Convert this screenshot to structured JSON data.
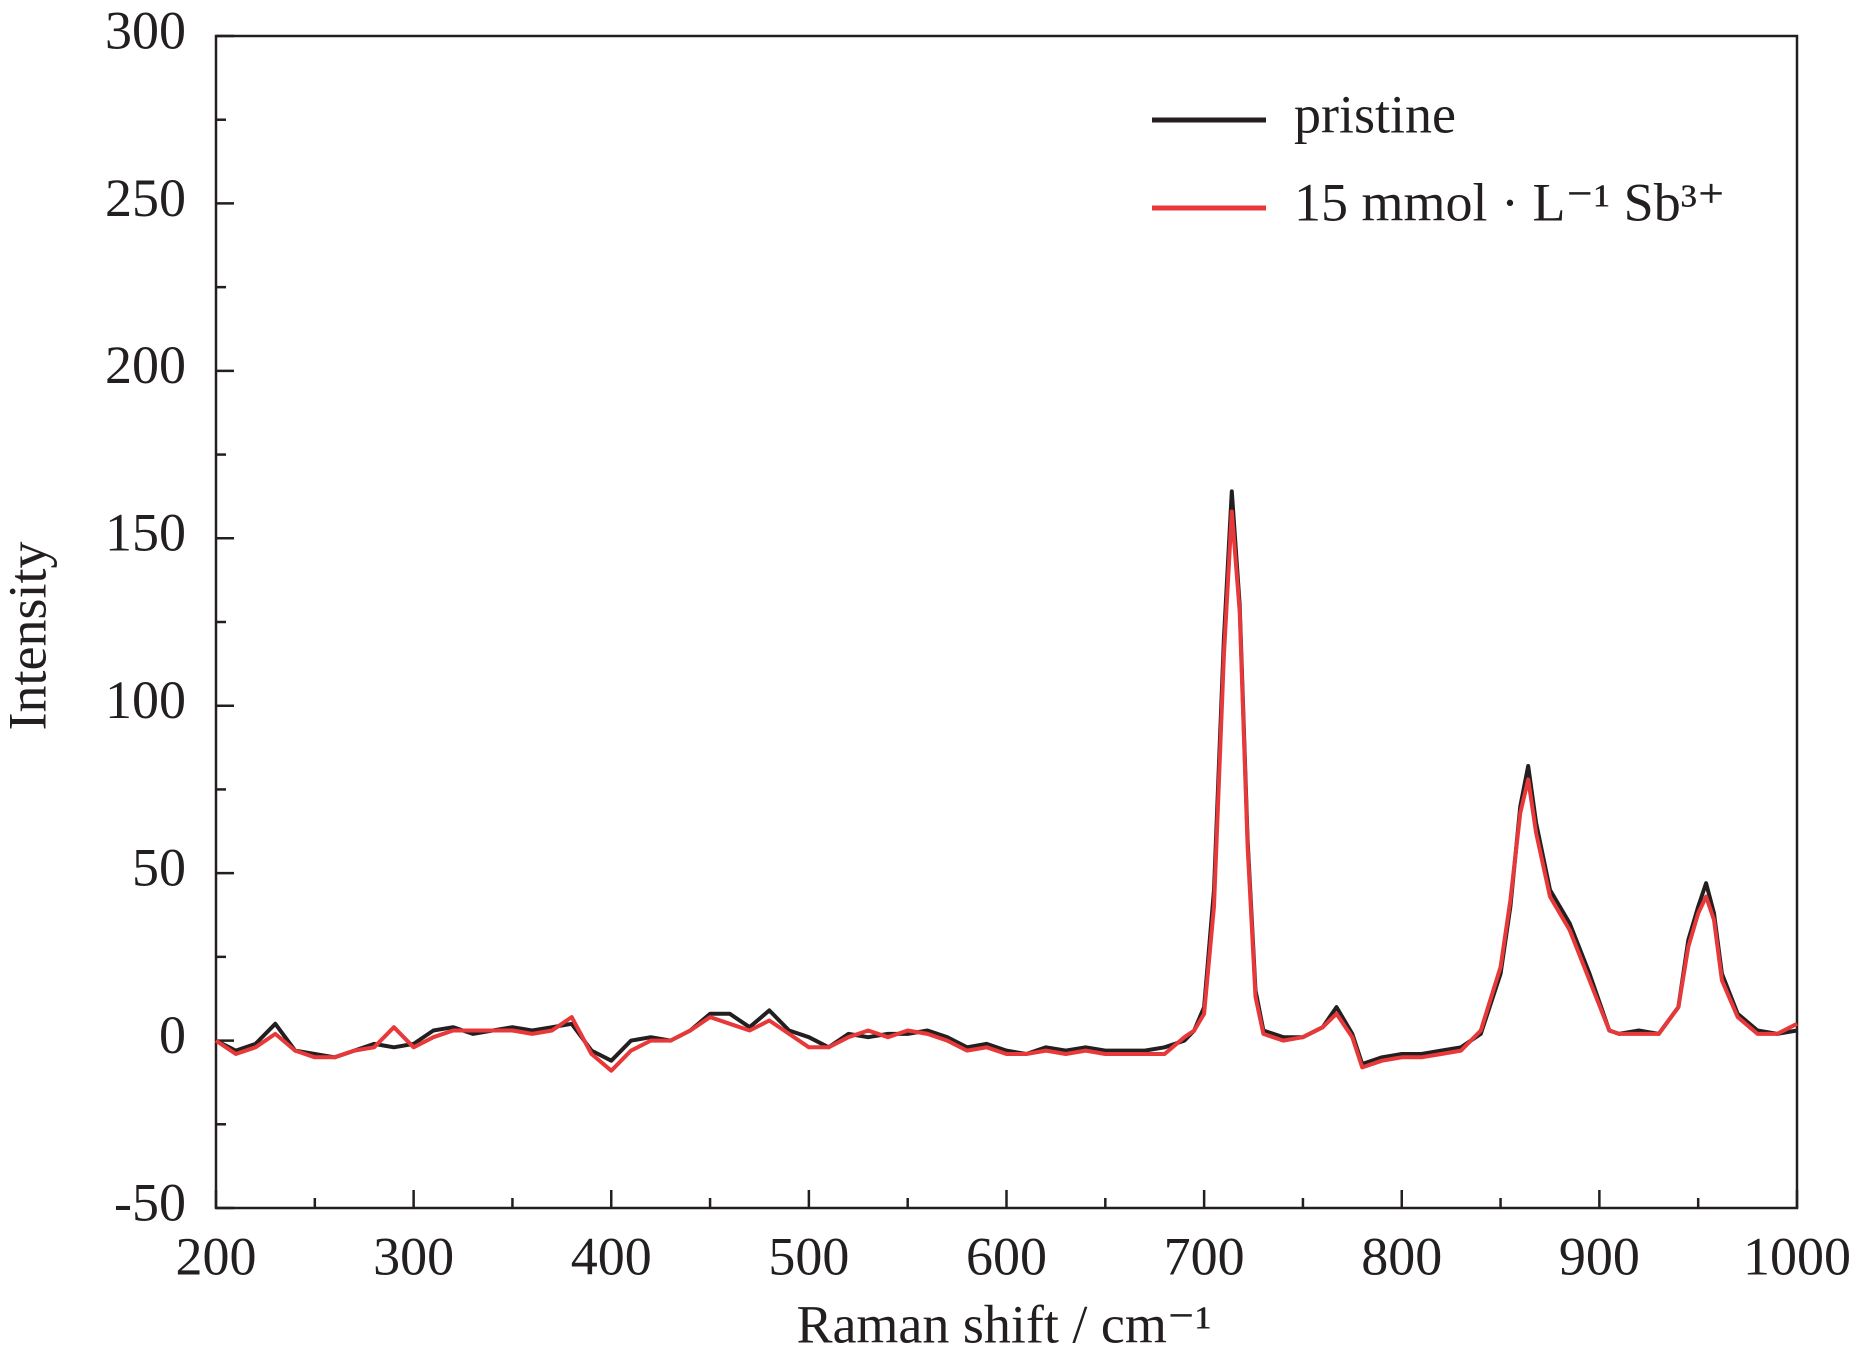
{
  "chart_data": {
    "type": "line",
    "xlabel": "Raman shift / cm⁻¹",
    "ylabel": "Intensity",
    "x": [
      200,
      210,
      220,
      230,
      240,
      250,
      260,
      270,
      280,
      290,
      300,
      310,
      320,
      330,
      340,
      350,
      360,
      370,
      380,
      390,
      400,
      410,
      420,
      430,
      440,
      450,
      460,
      470,
      480,
      490,
      500,
      510,
      520,
      530,
      540,
      550,
      560,
      570,
      580,
      590,
      600,
      610,
      620,
      630,
      640,
      650,
      660,
      670,
      680,
      690,
      695,
      700,
      705,
      710,
      714,
      718,
      722,
      726,
      730,
      740,
      750,
      760,
      767,
      775,
      780,
      790,
      800,
      810,
      820,
      830,
      840,
      850,
      855,
      860,
      864,
      868,
      875,
      885,
      895,
      905,
      910,
      920,
      930,
      940,
      945,
      950,
      954,
      958,
      962,
      970,
      980,
      990,
      1000
    ],
    "series": [
      {
        "name": "pristine",
        "color": "#231f20",
        "values": [
          0,
          -3,
          -1,
          5,
          -3,
          -4,
          -5,
          -3,
          -1,
          -2,
          -1,
          3,
          4,
          2,
          3,
          4,
          3,
          4,
          5,
          -3,
          -6,
          0,
          1,
          0,
          3,
          8,
          8,
          4,
          9,
          3,
          1,
          -2,
          2,
          1,
          2,
          2,
          3,
          1,
          -2,
          -1,
          -3,
          -4,
          -2,
          -3,
          -2,
          -3,
          -3,
          -3,
          -2,
          0,
          3,
          10,
          45,
          120,
          164,
          130,
          60,
          15,
          3,
          1,
          1,
          4,
          10,
          2,
          -7,
          -5,
          -4,
          -4,
          -3,
          -2,
          2,
          20,
          40,
          70,
          82,
          65,
          45,
          35,
          20,
          3,
          2,
          3,
          2,
          10,
          30,
          40,
          47,
          38,
          20,
          8,
          3,
          2,
          3
        ]
      },
      {
        "name": "15 mmol · L⁻¹ Sb³⁺",
        "color": "#e8393a",
        "values": [
          0,
          -4,
          -2,
          2,
          -3,
          -5,
          -5,
          -3,
          -2,
          4,
          -2,
          1,
          3,
          3,
          3,
          3,
          2,
          3,
          7,
          -4,
          -9,
          -3,
          0,
          0,
          3,
          7,
          5,
          3,
          6,
          2,
          -2,
          -2,
          1,
          3,
          1,
          3,
          2,
          0,
          -3,
          -2,
          -4,
          -4,
          -3,
          -4,
          -3,
          -4,
          -4,
          -4,
          -4,
          1,
          3,
          8,
          40,
          115,
          158,
          128,
          58,
          13,
          2,
          0,
          1,
          4,
          8,
          1,
          -8,
          -6,
          -5,
          -5,
          -4,
          -3,
          3,
          22,
          42,
          68,
          78,
          62,
          43,
          33,
          18,
          3,
          2,
          2,
          2,
          10,
          28,
          38,
          43,
          36,
          18,
          7,
          2,
          2,
          5
        ]
      }
    ],
    "xlim": [
      200,
      1000
    ],
    "xticks": [
      200,
      300,
      400,
      500,
      600,
      700,
      800,
      900,
      1000
    ],
    "ylim": [
      -50,
      300
    ],
    "yticks": [
      -50,
      0,
      50,
      100,
      150,
      200,
      250,
      300
    ],
    "legend": "upper right",
    "grid": false
  }
}
